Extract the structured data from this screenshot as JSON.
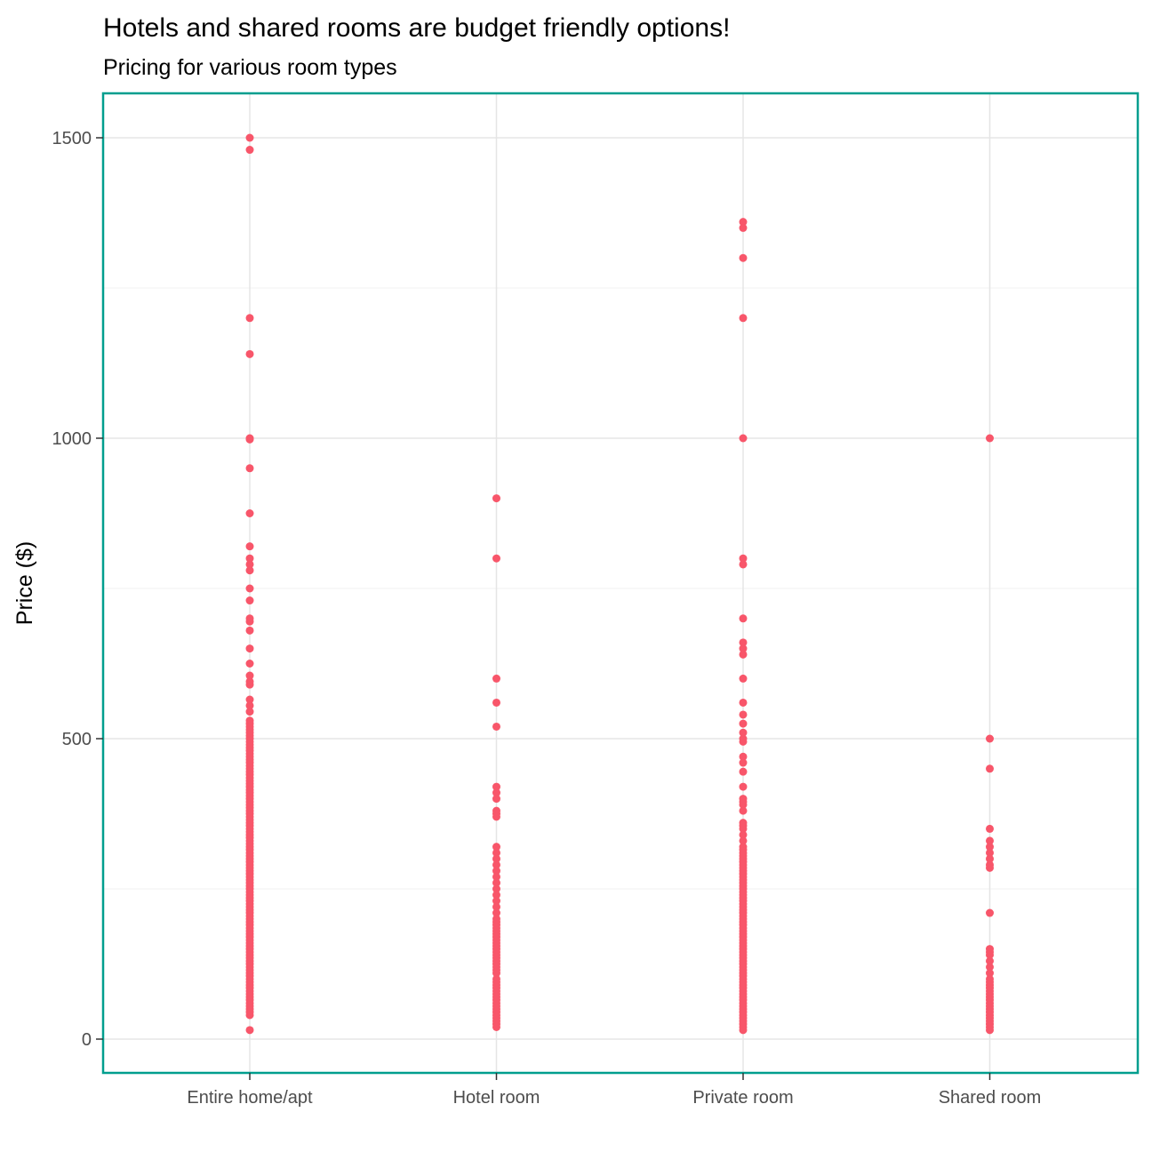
{
  "chart_data": {
    "type": "scatter",
    "title": "Hotels and shared rooms are budget friendly options!",
    "subtitle": "Pricing for various room types",
    "xlabel": "",
    "ylabel": "Price ($)",
    "ylim": [
      -115,
      1580
    ],
    "yticks": [
      0,
      500,
      1000,
      1500
    ],
    "ytick_labels": [
      "0",
      "500",
      "1000",
      "1500"
    ],
    "categories": [
      "Entire home/apt",
      "Hotel room",
      "Private room",
      "Shared room"
    ],
    "grid": true,
    "point_color": "#F8566A",
    "frame_color": "#009E8E",
    "series": [
      {
        "category": "Entire home/apt",
        "values": [
          1500,
          1480,
          1200,
          1140,
          1000,
          998,
          950,
          875,
          820,
          800,
          790,
          780,
          750,
          730,
          700,
          695,
          680,
          650,
          625,
          605,
          595,
          590,
          565,
          555,
          545,
          530,
          525,
          520,
          515,
          510,
          505,
          500,
          495,
          490,
          485,
          480,
          475,
          470,
          465,
          460,
          455,
          450,
          445,
          440,
          435,
          430,
          425,
          420,
          415,
          410,
          405,
          400,
          395,
          390,
          385,
          380,
          375,
          370,
          365,
          360,
          355,
          350,
          345,
          340,
          335,
          330,
          325,
          320,
          315,
          310,
          305,
          300,
          295,
          290,
          285,
          280,
          275,
          270,
          265,
          260,
          255,
          250,
          245,
          240,
          235,
          230,
          225,
          220,
          215,
          210,
          205,
          200,
          195,
          190,
          185,
          180,
          175,
          170,
          165,
          160,
          155,
          150,
          145,
          140,
          135,
          130,
          125,
          120,
          115,
          110,
          105,
          100,
          95,
          90,
          85,
          80,
          75,
          70,
          65,
          60,
          55,
          50,
          45,
          40,
          15
        ]
      },
      {
        "category": "Hotel room",
        "values": [
          900,
          800,
          600,
          560,
          520,
          420,
          410,
          400,
          380,
          375,
          370,
          320,
          310,
          300,
          290,
          280,
          270,
          260,
          250,
          240,
          230,
          220,
          210,
          200,
          195,
          190,
          185,
          180,
          175,
          170,
          165,
          160,
          155,
          150,
          145,
          140,
          135,
          130,
          125,
          120,
          115,
          110,
          100,
          95,
          90,
          85,
          80,
          75,
          70,
          65,
          60,
          55,
          50,
          45,
          40,
          35,
          30,
          25,
          20
        ]
      },
      {
        "category": "Private room",
        "values": [
          1360,
          1350,
          1300,
          1200,
          1000,
          800,
          790,
          700,
          660,
          650,
          640,
          600,
          560,
          540,
          525,
          510,
          500,
          495,
          470,
          460,
          445,
          420,
          400,
          395,
          390,
          380,
          360,
          355,
          350,
          340,
          330,
          320,
          315,
          310,
          305,
          300,
          295,
          290,
          285,
          280,
          275,
          270,
          265,
          260,
          255,
          250,
          245,
          240,
          235,
          230,
          225,
          220,
          215,
          210,
          205,
          200,
          195,
          190,
          185,
          180,
          175,
          170,
          165,
          160,
          155,
          150,
          145,
          140,
          135,
          130,
          125,
          120,
          115,
          110,
          105,
          100,
          95,
          90,
          85,
          80,
          75,
          70,
          65,
          60,
          55,
          50,
          45,
          40,
          35,
          30,
          25,
          20,
          15
        ]
      },
      {
        "category": "Shared room",
        "values": [
          1000,
          500,
          450,
          350,
          330,
          320,
          310,
          300,
          290,
          285,
          210,
          150,
          145,
          140,
          130,
          120,
          110,
          100,
          95,
          90,
          85,
          80,
          75,
          70,
          65,
          60,
          55,
          50,
          45,
          40,
          35,
          30,
          25,
          20,
          15
        ]
      }
    ]
  }
}
